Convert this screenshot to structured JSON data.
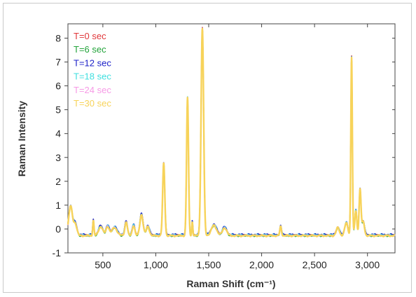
{
  "chart_data": {
    "type": "line",
    "title": "",
    "xlabel": "Raman Shift (cm⁻¹)",
    "ylabel": "Raman Intensity",
    "xlim": [
      170,
      3260
    ],
    "ylim": [
      -1,
      8.6
    ],
    "x_ticks": [
      500,
      1000,
      1500,
      2000,
      2500,
      3000
    ],
    "x_tick_labels": [
      "500",
      "1,000",
      "1,500",
      "2,000",
      "2,500",
      "3,000"
    ],
    "y_ticks": [
      -1,
      0,
      1,
      2,
      3,
      4,
      5,
      6,
      7,
      8
    ],
    "y_tick_labels": [
      "-1",
      "0",
      "1",
      "2",
      "3",
      "4",
      "5",
      "6",
      "7",
      "8"
    ],
    "grid": false,
    "legend_position": "top-left",
    "peaks": [
      {
        "x": 195,
        "y": 0.95,
        "w": 18
      },
      {
        "x": 240,
        "y": 0.2,
        "w": 15
      },
      {
        "x": 410,
        "y": 0.35,
        "w": 6
      },
      {
        "x": 480,
        "y": 0.1,
        "w": 20
      },
      {
        "x": 545,
        "y": 0.1,
        "w": 15
      },
      {
        "x": 610,
        "y": 0.05,
        "w": 25
      },
      {
        "x": 720,
        "y": 0.3,
        "w": 12
      },
      {
        "x": 790,
        "y": 0.15,
        "w": 12
      },
      {
        "x": 865,
        "y": 0.6,
        "w": 15
      },
      {
        "x": 925,
        "y": 0.1,
        "w": 15
      },
      {
        "x": 1075,
        "y": 2.75,
        "w": 10
      },
      {
        "x": 1300,
        "y": 5.5,
        "w": 9
      },
      {
        "x": 1345,
        "y": 0.3,
        "w": 5
      },
      {
        "x": 1440,
        "y": 8.4,
        "w": 12
      },
      {
        "x": 1550,
        "y": 0.15,
        "w": 25
      },
      {
        "x": 1650,
        "y": 0.05,
        "w": 20
      },
      {
        "x": 2180,
        "y": 0.1,
        "w": 8
      },
      {
        "x": 2720,
        "y": 0.05,
        "w": 15
      },
      {
        "x": 2800,
        "y": 0.25,
        "w": 15
      },
      {
        "x": 2850,
        "y": 7.2,
        "w": 7
      },
      {
        "x": 2890,
        "y": 0.75,
        "w": 10
      },
      {
        "x": 2930,
        "y": 1.65,
        "w": 9
      },
      {
        "x": 2960,
        "y": 0.3,
        "w": 12
      }
    ],
    "baseline": -0.28,
    "series": [
      {
        "name": "T=0 sec",
        "color": "#e0373a",
        "offset": 0.02
      },
      {
        "name": "T=6 sec",
        "color": "#22a33a",
        "offset": 0.0
      },
      {
        "name": "T=12 sec",
        "color": "#1d22c8",
        "offset": 0.05
      },
      {
        "name": "T=18 sec",
        "color": "#3fdfdf",
        "offset": 0.03
      },
      {
        "name": "T=24 sec",
        "color": "#f79ae6",
        "offset": 0.01
      },
      {
        "name": "T=30 sec",
        "color": "#f7d35a",
        "offset": 0.0
      }
    ]
  }
}
